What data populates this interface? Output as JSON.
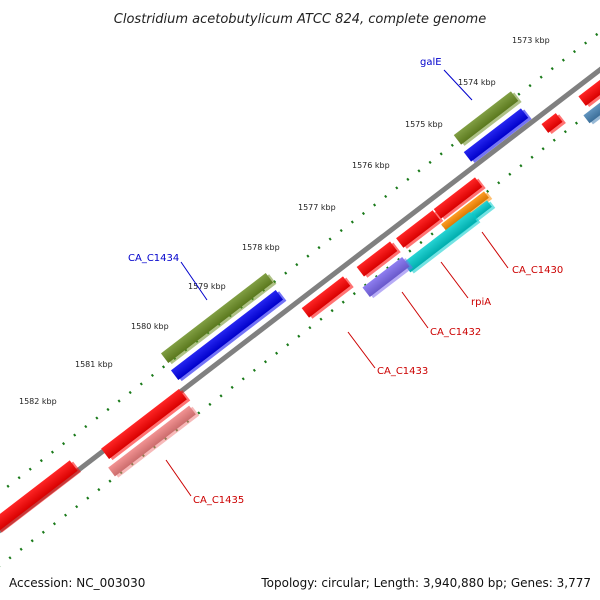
{
  "map": {
    "title": "Clostridium acetobutylicum ATCC 824, complete genome",
    "accession": "Accession: NC_003030",
    "summary": "Topology: circular; Length: 3,940,880 bp; Genes: 3,777",
    "ticks": [
      "1573 kbp",
      "1574 kbp",
      "1575 kbp",
      "1576 kbp",
      "1577 kbp",
      "1578 kbp",
      "1579 kbp",
      "1580 kbp",
      "1581 kbp",
      "1582 kbp"
    ],
    "genes": [
      "galE",
      "CA_C1434",
      "CA_C1430",
      "rpiA",
      "CA_C1432",
      "CA_C1433",
      "CA_C1435"
    ],
    "colors": {
      "backbone": "#808080",
      "tick": "#1a7a1a",
      "cds_red": "#ff0000",
      "cds_pink": "#f08080",
      "olive": "#6b8e23",
      "blue": "#0000ee",
      "cyan": "#00cccc",
      "purple": "#7b68ee",
      "orange": "#ff8c00",
      "steelblue": "#4682b4",
      "label_blue": "#0000cc",
      "label_red": "#cc0000"
    }
  }
}
